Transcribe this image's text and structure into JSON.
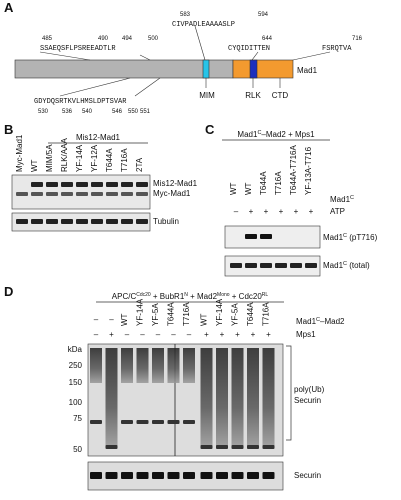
{
  "panel_a": {
    "letter": "A",
    "sequences": [
      {
        "text": "CIVPADLEAAAASLP",
        "numbers": [
          "583",
          "594"
        ]
      },
      {
        "text": "CYQIDITTEN",
        "numbers": [
          "644"
        ]
      },
      {
        "text": "FSRQTVA",
        "numbers": [
          "716"
        ]
      },
      {
        "text": "SSAEQSFLPSREEADTLR",
        "numbers": [
          "485",
          "490",
          "494",
          "500"
        ]
      },
      {
        "text": "GDYDQSRTKVLHMSLDPTSVAR",
        "numbers": [
          "530",
          "536",
          "540",
          "546",
          "550",
          "551"
        ]
      }
    ],
    "protein": "Mad1",
    "domains": [
      "MIM",
      "RLK",
      "CTD"
    ]
  },
  "panel_b": {
    "letter": "B",
    "header": "Mis12-Mad1",
    "lanes": [
      "Myc-Mad1",
      "WT",
      "MIM/5A",
      "RLK/AAA",
      "YF-14A",
      "YF-12A",
      "T644A",
      "T716A",
      "2TA"
    ],
    "right_labels": [
      "Mis12-Mad1",
      "Myc-Mad1",
      "Tubulin"
    ]
  },
  "panel_c": {
    "letter": "C",
    "header": {
      "base": "Mad1",
      "sup": "C",
      "rest": "–Mad2 + Mps1"
    },
    "lanes": [
      "WT",
      "WT",
      "T644A",
      "T716A",
      "T644A-T716A",
      "YF-13A-T716"
    ],
    "mad1_label": {
      "base": "Mad1",
      "sup": "C"
    },
    "atp_signs": [
      "–",
      "+",
      "+",
      "+",
      "+",
      "+"
    ],
    "atp_label": "ATP",
    "blot_labels": [
      {
        "base": "Mad1",
        "sup": "C",
        "rest": " (pT716)"
      },
      {
        "base": "Mad1",
        "sup": "C",
        "rest": " (total)"
      }
    ]
  },
  "panel_d": {
    "letter": "D",
    "header": [
      {
        "text": "APC/C",
        "sup": "Cdc20"
      },
      {
        "text": " + BubR1",
        "sup": "N"
      },
      {
        "text": " + Mad2",
        "sup": "Mono"
      },
      {
        "text": " + Cdc20",
        "sup": "RL"
      }
    ],
    "lanes": [
      "–",
      "–",
      "WT",
      "YF-14A",
      "YF-5A",
      "T644A",
      "T716A",
      "WT",
      "YF-14A",
      "YF-5A",
      "T644A",
      "T716A"
    ],
    "mad1_label": {
      "base": "Mad1",
      "sup": "C",
      "rest": "–Mad2"
    },
    "mps1_signs": [
      "–",
      "+",
      "–",
      "–",
      "–",
      "–",
      "–",
      "+",
      "+",
      "+",
      "+",
      "+"
    ],
    "mps1_label": "Mps1",
    "kda": "kDa",
    "markers": [
      "250",
      "150",
      "100",
      "75",
      "50"
    ],
    "right_labels": [
      "poly(Ub)",
      "Securin",
      "Securin"
    ]
  }
}
